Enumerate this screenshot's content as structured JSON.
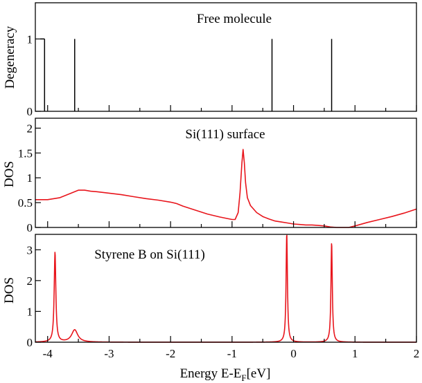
{
  "chart_data": [
    {
      "type": "stick",
      "title": "Free molecule",
      "ylabel": "Degeneracy",
      "xlim": [
        -4.2,
        2.0
      ],
      "ylim": [
        0,
        1.5
      ],
      "yticks": [
        0,
        1
      ],
      "ytick_labels": [
        "0",
        "1"
      ],
      "series": [
        {
          "name": "levels",
          "x": [
            -4.05,
            -3.56,
            -0.35,
            0.62
          ],
          "values": [
            1,
            1,
            1,
            1
          ]
        }
      ],
      "color": "#000000"
    },
    {
      "type": "line",
      "title": "Si(111) surface",
      "ylabel": "DOS",
      "xlim": [
        -4.2,
        2.0
      ],
      "ylim": [
        0,
        2.2
      ],
      "yticks": [
        0,
        0.5,
        1,
        1.5,
        2
      ],
      "ytick_labels": [
        "0",
        "0.5",
        "1",
        "1.5",
        "2"
      ],
      "series": [
        {
          "name": "Si(111) DOS",
          "x": [
            -4.2,
            -4.0,
            -3.8,
            -3.6,
            -3.5,
            -3.4,
            -3.3,
            -3.2,
            -3.0,
            -2.8,
            -2.6,
            -2.4,
            -2.2,
            -2.0,
            -1.9,
            -1.8,
            -1.6,
            -1.4,
            -1.2,
            -1.0,
            -0.95,
            -0.9,
            -0.87,
            -0.84,
            -0.82,
            -0.8,
            -0.78,
            -0.75,
            -0.7,
            -0.6,
            -0.5,
            -0.4,
            -0.3,
            -0.2,
            -0.1,
            0.0,
            0.1,
            0.2,
            0.3,
            0.4,
            0.5,
            0.6,
            0.7,
            0.8,
            0.9,
            1.0,
            1.2,
            1.4,
            1.6,
            1.8,
            2.0
          ],
          "values": [
            0.56,
            0.56,
            0.6,
            0.7,
            0.75,
            0.75,
            0.73,
            0.72,
            0.69,
            0.66,
            0.62,
            0.58,
            0.55,
            0.51,
            0.48,
            0.43,
            0.35,
            0.27,
            0.21,
            0.16,
            0.16,
            0.3,
            0.7,
            1.3,
            1.57,
            1.3,
            0.9,
            0.6,
            0.44,
            0.3,
            0.22,
            0.17,
            0.13,
            0.11,
            0.09,
            0.07,
            0.06,
            0.05,
            0.05,
            0.04,
            0.03,
            0.01,
            0.0,
            0.0,
            0.0,
            0.03,
            0.1,
            0.16,
            0.22,
            0.29,
            0.37
          ]
        }
      ],
      "color": "#e8141b"
    },
    {
      "type": "line",
      "title": "Styrene B on Si(111)",
      "ylabel": "DOS",
      "xlim": [
        -4.2,
        2.0
      ],
      "ylim": [
        0,
        3.5
      ],
      "yticks": [
        0,
        1,
        2,
        3
      ],
      "ytick_labels": [
        "0",
        "1",
        "2",
        "3"
      ],
      "xticks": [
        -4,
        -3,
        -2,
        -1,
        0,
        1,
        2
      ],
      "xtick_labels": [
        "-4",
        "-3",
        "-2",
        "-1",
        "0",
        "1",
        "2"
      ],
      "xlabel": "Energy E-E",
      "xlabel_sub": "F",
      "xlabel_unit": "[eV]",
      "peaks": [
        {
          "center": -3.88,
          "height": 2.92,
          "width": 0.016
        },
        {
          "center": -3.56,
          "height": 0.4,
          "width": 0.06
        },
        {
          "center": -0.11,
          "height": 3.55,
          "width": 0.013
        },
        {
          "center": 0.62,
          "height": 3.25,
          "width": 0.013
        }
      ],
      "color": "#e8141b"
    }
  ]
}
